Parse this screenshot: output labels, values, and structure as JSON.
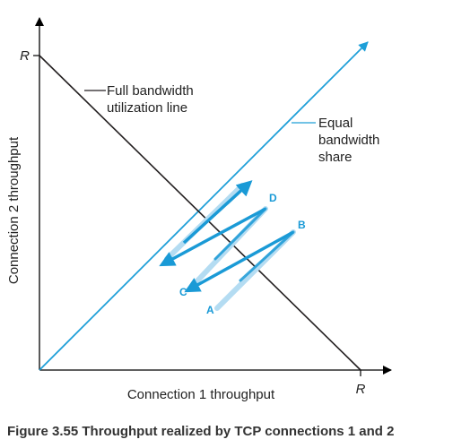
{
  "diagram": {
    "axes": {
      "x_label": "Connection 1 throughput",
      "y_label": "Connection 2 throughput",
      "x_max_label": "R",
      "y_max_label": "R"
    },
    "full_bandwidth_label": {
      "line1": "Full bandwidth",
      "line2": "utilization line"
    },
    "equal_share_label": {
      "line1": "Equal",
      "line2": "bandwidth",
      "line3": "share"
    },
    "points": {
      "a": "A",
      "b": "B",
      "c": "C",
      "d": "D"
    },
    "caption": "Figure 3.55 Throughput realized by TCP connections 1 and 2"
  },
  "colors": {
    "axis": "#000000",
    "full_bandwidth_line": "#231f20",
    "equal_share_line": "#1e9fd8",
    "arrow_dark": "#1a9ad6",
    "arrow_light": "#b4dcf2",
    "point_label": "#1a9ad6"
  }
}
